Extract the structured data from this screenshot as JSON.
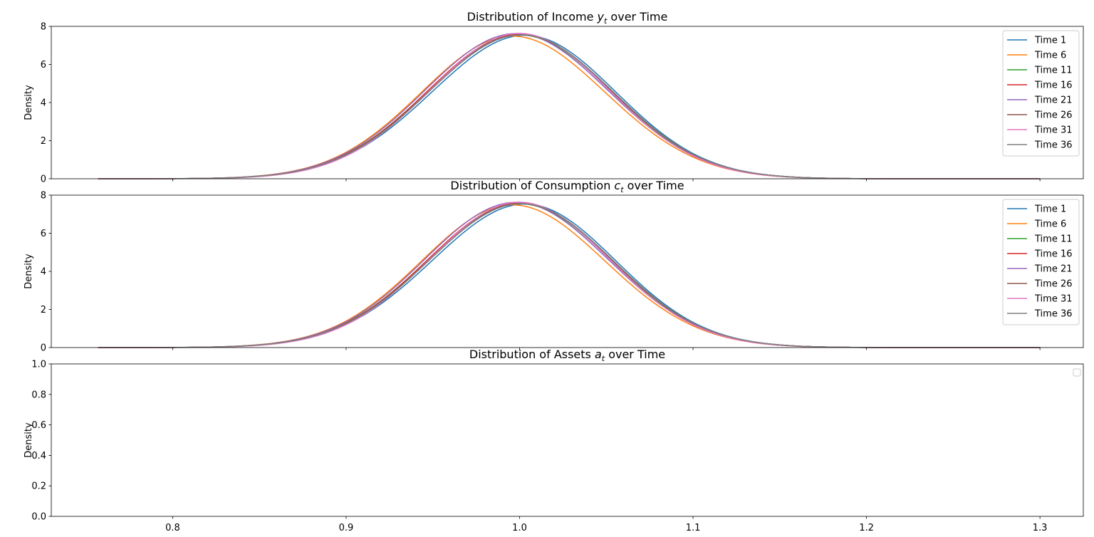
{
  "chart_data": [
    {
      "type": "line",
      "title": "Distribution of Income y_t over Time",
      "title_parts": [
        "Distribution of Income ",
        "y",
        "t",
        " over Time"
      ],
      "xlabel": "",
      "ylabel": "Density",
      "xlim": [
        0.73,
        1.325
      ],
      "ylim": [
        0,
        8
      ],
      "xticks": [],
      "yticks": [
        0,
        2,
        4,
        6,
        8
      ],
      "show_xtick_marks": [
        0.8,
        0.9,
        1.0,
        1.1,
        1.2,
        1.3
      ],
      "legend": "upper right",
      "grid": false,
      "series": [
        {
          "name": "Time 1",
          "color": "#1f77b4",
          "mu": 1.0,
          "sigma": 0.053,
          "peak": 7.52,
          "skew": 0.06
        },
        {
          "name": "Time 6",
          "color": "#ff7f0e",
          "mu": 0.998,
          "sigma": 0.053,
          "peak": 7.48,
          "skew": -0.04
        },
        {
          "name": "Time 11",
          "color": "#2ca02c",
          "mu": 0.999,
          "sigma": 0.053,
          "peak": 7.55,
          "skew": 0.02
        },
        {
          "name": "Time 16",
          "color": "#d62728",
          "mu": 1.0,
          "sigma": 0.053,
          "peak": 7.6,
          "skew": 0.0
        },
        {
          "name": "Time 21",
          "color": "#9467bd",
          "mu": 0.999,
          "sigma": 0.053,
          "peak": 7.62,
          "skew": -0.02
        },
        {
          "name": "Time 26",
          "color": "#8c564b",
          "mu": 1.0,
          "sigma": 0.053,
          "peak": 7.55,
          "skew": 0.01
        },
        {
          "name": "Time 31",
          "color": "#e377c2",
          "mu": 1.0,
          "sigma": 0.052,
          "peak": 7.63,
          "skew": 0.0
        },
        {
          "name": "Time 36",
          "color": "#7f7f7f",
          "mu": 1.0,
          "sigma": 0.053,
          "peak": 7.55,
          "skew": 0.02
        }
      ]
    },
    {
      "type": "line",
      "title": "Distribution of Consumption c_t over Time",
      "title_parts": [
        "Distribution of Consumption ",
        "c",
        "t",
        " over Time"
      ],
      "xlabel": "",
      "ylabel": "Density",
      "xlim": [
        0.73,
        1.325
      ],
      "ylim": [
        0,
        8
      ],
      "xticks": [],
      "yticks": [
        0,
        2,
        4,
        6,
        8
      ],
      "show_xtick_marks": [
        0.8,
        0.9,
        1.0,
        1.1,
        1.2,
        1.3
      ],
      "legend": "upper right",
      "grid": false,
      "series": [
        {
          "name": "Time 1",
          "color": "#1f77b4",
          "mu": 1.0,
          "sigma": 0.053,
          "peak": 7.52,
          "skew": 0.06
        },
        {
          "name": "Time 6",
          "color": "#ff7f0e",
          "mu": 0.998,
          "sigma": 0.053,
          "peak": 7.48,
          "skew": -0.04
        },
        {
          "name": "Time 11",
          "color": "#2ca02c",
          "mu": 0.999,
          "sigma": 0.053,
          "peak": 7.55,
          "skew": 0.02
        },
        {
          "name": "Time 16",
          "color": "#d62728",
          "mu": 1.0,
          "sigma": 0.053,
          "peak": 7.6,
          "skew": 0.0
        },
        {
          "name": "Time 21",
          "color": "#9467bd",
          "mu": 0.999,
          "sigma": 0.053,
          "peak": 7.62,
          "skew": -0.02
        },
        {
          "name": "Time 26",
          "color": "#8c564b",
          "mu": 1.0,
          "sigma": 0.053,
          "peak": 7.55,
          "skew": 0.01
        },
        {
          "name": "Time 31",
          "color": "#e377c2",
          "mu": 1.0,
          "sigma": 0.052,
          "peak": 7.63,
          "skew": 0.0
        },
        {
          "name": "Time 36",
          "color": "#7f7f7f",
          "mu": 1.0,
          "sigma": 0.053,
          "peak": 7.55,
          "skew": 0.02
        }
      ]
    },
    {
      "type": "line",
      "title": "Distribution of Assets a_t over Time",
      "title_parts": [
        "Distribution of Assets ",
        "a",
        "t",
        " over Time"
      ],
      "xlabel": "",
      "ylabel": "Density",
      "xlim": [
        0.73,
        1.325
      ],
      "ylim": [
        0,
        1
      ],
      "xticks": [
        "0.8",
        "0.9",
        "1.0",
        "1.1",
        "1.2",
        "1.3"
      ],
      "xtick_values": [
        0.8,
        0.9,
        1.0,
        1.1,
        1.2,
        1.3
      ],
      "yticks": [
        "0.0",
        "0.2",
        "0.4",
        "0.6",
        "0.8",
        "1.0"
      ],
      "ytick_values": [
        0,
        0.2,
        0.4,
        0.6,
        0.8,
        1.0
      ],
      "legend": "upper right (empty)",
      "grid": false,
      "series": []
    }
  ]
}
